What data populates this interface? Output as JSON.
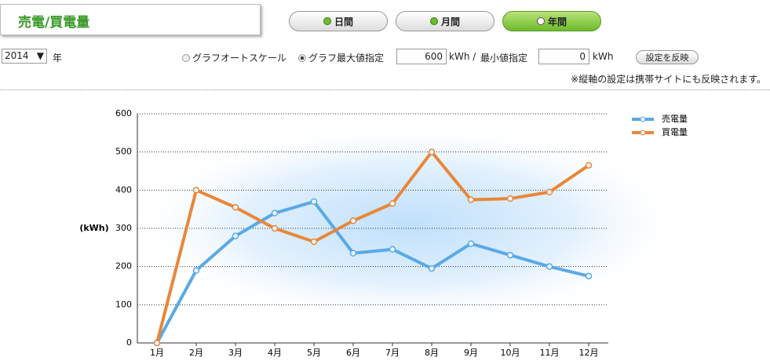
{
  "header": {
    "title": "売電/買電量"
  },
  "tabs": [
    {
      "label": "日間",
      "selected": false
    },
    {
      "label": "月間",
      "selected": false
    },
    {
      "label": "年間",
      "selected": true
    }
  ],
  "controls": {
    "year": "2014",
    "year_unit": "年",
    "radios": [
      {
        "label": "グラフオートスケール",
        "selected": false
      },
      {
        "label": "グラフ最大値指定",
        "selected": true
      }
    ],
    "max_value": 600,
    "max_unit": "kWh /",
    "min_label": "最小値指定",
    "min_value": 0,
    "min_unit": "kWh",
    "apply": "設定を反映",
    "note": "※縦軸の設定は携帯サイトにも反映されます。"
  },
  "chart_data": {
    "type": "line",
    "y_label": "(kWh)",
    "categories": [
      "1月",
      "2月",
      "3月",
      "4月",
      "5月",
      "6月",
      "7月",
      "8月",
      "9月",
      "10月",
      "11月",
      "12月"
    ],
    "series": [
      {
        "name": "売電量",
        "color": "#5aa9e6",
        "values": [
          0,
          190,
          280,
          340,
          370,
          235,
          245,
          195,
          260,
          230,
          200,
          175
        ]
      },
      {
        "name": "買電量",
        "color": "#e8873a",
        "values": [
          0,
          400,
          355,
          300,
          265,
          320,
          365,
          500,
          375,
          378,
          395,
          465
        ]
      }
    ],
    "ylim": [
      0,
      600
    ],
    "yticks": [
      0,
      100,
      200,
      300,
      400,
      500,
      600
    ],
    "grid": true,
    "legend": "upper right"
  }
}
